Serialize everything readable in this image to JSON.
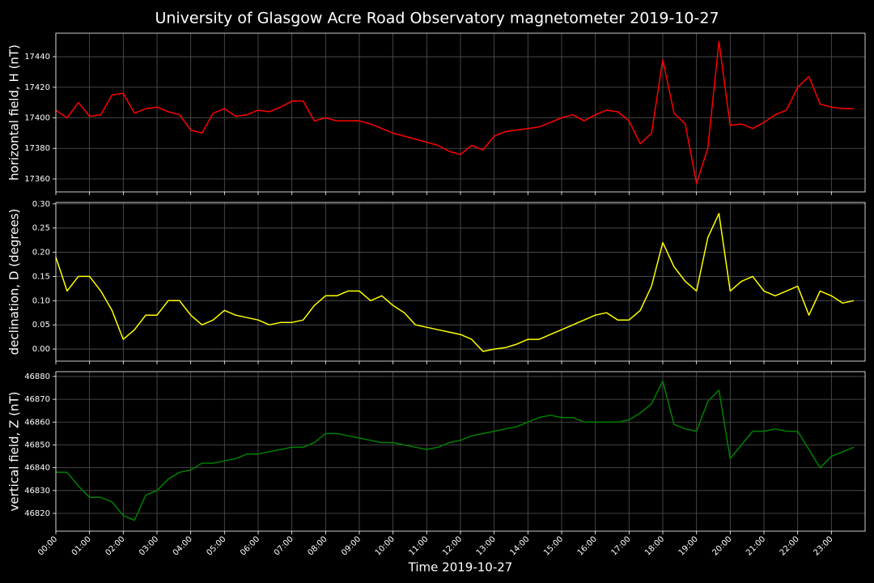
{
  "title": "University of Glasgow Acre Road Observatory magnetometer 2019-10-27",
  "chart_data": [
    {
      "type": "line",
      "ylabel": "horizontal field, H (nT)",
      "color": "#ff0000",
      "grid": true,
      "xlim": [
        "00:00",
        "24:00"
      ],
      "xticks": [
        "00:00",
        "01:00",
        "02:00",
        "03:00",
        "04:00",
        "05:00",
        "06:00",
        "07:00",
        "08:00",
        "09:00",
        "10:00",
        "11:00",
        "12:00",
        "13:00",
        "14:00",
        "15:00",
        "16:00",
        "17:00",
        "18:00",
        "19:00",
        "20:00",
        "21:00",
        "22:00",
        "23:00"
      ],
      "ylim": [
        17351.5,
        17455.4
      ],
      "yticks": [
        17360,
        17380,
        17400,
        17420,
        17440
      ],
      "x": [
        "00:00",
        "00:20",
        "00:40",
        "01:00",
        "01:20",
        "01:40",
        "02:00",
        "02:20",
        "02:40",
        "03:00",
        "03:20",
        "03:40",
        "04:00",
        "04:20",
        "04:40",
        "05:00",
        "05:20",
        "05:40",
        "06:00",
        "06:20",
        "06:40",
        "07:00",
        "07:20",
        "07:40",
        "08:00",
        "08:20",
        "08:40",
        "09:00",
        "09:20",
        "09:40",
        "10:00",
        "10:20",
        "10:40",
        "11:00",
        "11:20",
        "11:40",
        "12:00",
        "12:20",
        "12:40",
        "13:00",
        "13:20",
        "13:40",
        "14:00",
        "14:20",
        "14:40",
        "15:00",
        "15:20",
        "15:40",
        "16:00",
        "16:20",
        "16:40",
        "17:00",
        "17:20",
        "17:40",
        "18:00",
        "18:20",
        "18:40",
        "19:00",
        "19:20",
        "19:40",
        "20:00",
        "20:20",
        "20:40",
        "21:00",
        "21:20",
        "21:40",
        "22:00",
        "22:20",
        "22:40",
        "23:00",
        "23:20",
        "23:40"
      ],
      "values": [
        17405,
        17400,
        17410,
        17401,
        17402,
        17415,
        17416,
        17403,
        17406,
        17407,
        17404,
        17402,
        17392,
        17390,
        17403,
        17406,
        17401,
        17402,
        17405,
        17404,
        17407,
        17411,
        17411,
        17398,
        17400,
        17398,
        17398,
        17398,
        17396,
        17393,
        17390,
        17388,
        17386,
        17384,
        17382,
        17378,
        17376,
        17382,
        17379,
        17388,
        17391,
        17392,
        17393,
        17394,
        17397,
        17400,
        17402,
        17398,
        17402,
        17405,
        17404,
        17398,
        17383,
        17390,
        17438,
        17403,
        17396,
        17357,
        17380,
        17450,
        17395,
        17396,
        17393,
        17397,
        17402,
        17405,
        17420,
        17427,
        17409,
        17407,
        17406,
        17406
      ]
    },
    {
      "type": "line",
      "ylabel": "declination, D (degrees)",
      "color": "#ffff00",
      "grid": true,
      "xlim": [
        "00:00",
        "24:00"
      ],
      "xticks": [
        "00:00",
        "01:00",
        "02:00",
        "03:00",
        "04:00",
        "05:00",
        "06:00",
        "07:00",
        "08:00",
        "09:00",
        "10:00",
        "11:00",
        "12:00",
        "13:00",
        "14:00",
        "15:00",
        "16:00",
        "17:00",
        "18:00",
        "19:00",
        "20:00",
        "21:00",
        "22:00",
        "23:00"
      ],
      "ylim": [
        -0.025,
        0.303
      ],
      "yticks": [
        {
          "value": 0,
          "label": "0.00"
        },
        0.05,
        {
          "value": 0.1,
          "label": "0.10"
        },
        0.15,
        {
          "value": 0.2,
          "label": "0.20"
        },
        0.25,
        {
          "value": 0.3,
          "label": "0.30"
        }
      ],
      "x": [
        "00:00",
        "00:20",
        "00:40",
        "01:00",
        "01:20",
        "01:40",
        "02:00",
        "02:20",
        "02:40",
        "03:00",
        "03:20",
        "03:40",
        "04:00",
        "04:20",
        "04:40",
        "05:00",
        "05:20",
        "05:40",
        "06:00",
        "06:20",
        "06:40",
        "07:00",
        "07:20",
        "07:40",
        "08:00",
        "08:20",
        "08:40",
        "09:00",
        "09:20",
        "09:40",
        "10:00",
        "10:20",
        "10:40",
        "11:00",
        "11:20",
        "11:40",
        "12:00",
        "12:20",
        "12:40",
        "13:00",
        "13:20",
        "13:40",
        "14:00",
        "14:20",
        "14:40",
        "15:00",
        "15:20",
        "15:40",
        "16:00",
        "16:20",
        "16:40",
        "17:00",
        "17:20",
        "17:40",
        "18:00",
        "18:20",
        "18:40",
        "19:00",
        "19:20",
        "19:40",
        "20:00",
        "20:20",
        "20:40",
        "21:00",
        "21:20",
        "21:40",
        "22:00",
        "22:20",
        "22:40",
        "23:00",
        "23:20",
        "23:40"
      ],
      "values": [
        0.19,
        0.12,
        0.15,
        0.15,
        0.12,
        0.08,
        0.02,
        0.04,
        0.07,
        0.07,
        0.1,
        0.1,
        0.07,
        0.05,
        0.06,
        0.08,
        0.07,
        0.065,
        0.06,
        0.05,
        0.055,
        0.055,
        0.06,
        0.09,
        0.11,
        0.11,
        0.12,
        0.12,
        0.1,
        0.11,
        0.09,
        0.075,
        0.05,
        0.045,
        0.04,
        0.035,
        0.03,
        0.02,
        -0.005,
        0,
        0.003,
        0.01,
        0.02,
        0.02,
        0.03,
        0.04,
        0.05,
        0.06,
        0.07,
        0.075,
        0.06,
        0.06,
        0.08,
        0.13,
        0.22,
        0.17,
        0.14,
        0.12,
        0.23,
        0.28,
        0.12,
        0.14,
        0.15,
        0.12,
        0.11,
        0.12,
        0.13,
        0.07,
        0.12,
        0.11,
        0.095,
        0.1
      ]
    },
    {
      "type": "line",
      "ylabel": "vertical field, Z (nT)",
      "xlabel": "Time 2019-10-27",
      "color": "#008000",
      "grid": true,
      "xlim": [
        "00:00",
        "24:00"
      ],
      "xticks": [
        "00:00",
        "01:00",
        "02:00",
        "03:00",
        "04:00",
        "05:00",
        "06:00",
        "07:00",
        "08:00",
        "09:00",
        "10:00",
        "11:00",
        "12:00",
        "13:00",
        "14:00",
        "15:00",
        "16:00",
        "17:00",
        "18:00",
        "19:00",
        "20:00",
        "21:00",
        "22:00",
        "23:00"
      ],
      "ylim": [
        46812.2,
        46882.1
      ],
      "yticks": [
        46820,
        46830,
        46840,
        46850,
        46860,
        46870,
        46880
      ],
      "x": [
        "00:00",
        "00:20",
        "00:40",
        "01:00",
        "01:20",
        "01:40",
        "02:00",
        "02:20",
        "02:40",
        "03:00",
        "03:20",
        "03:40",
        "04:00",
        "04:20",
        "04:40",
        "05:00",
        "05:20",
        "05:40",
        "06:00",
        "06:20",
        "06:40",
        "07:00",
        "07:20",
        "07:40",
        "08:00",
        "08:20",
        "08:40",
        "09:00",
        "09:20",
        "09:40",
        "10:00",
        "10:20",
        "10:40",
        "11:00",
        "11:20",
        "11:40",
        "12:00",
        "12:20",
        "12:40",
        "13:00",
        "13:20",
        "13:40",
        "14:00",
        "14:20",
        "14:40",
        "15:00",
        "15:20",
        "15:40",
        "16:00",
        "16:20",
        "16:40",
        "17:00",
        "17:20",
        "17:40",
        "18:00",
        "18:20",
        "18:40",
        "19:00",
        "19:20",
        "19:40",
        "20:00",
        "20:20",
        "20:40",
        "21:00",
        "21:20",
        "21:40",
        "22:00",
        "22:20",
        "22:40",
        "23:00",
        "23:20",
        "23:40"
      ],
      "values": [
        46838,
        46838,
        46832,
        46827,
        46827,
        46825,
        46819,
        46817,
        46828,
        46830,
        46835,
        46838,
        46839,
        46842,
        46842,
        46843,
        46844,
        46846,
        46846,
        46847,
        46848,
        46849,
        46849,
        46851,
        46855,
        46855,
        46854,
        46853,
        46852,
        46851,
        46851,
        46850,
        46849,
        46848,
        46849,
        46851,
        46852,
        46854,
        46855,
        46856,
        46857,
        46858,
        46860,
        46862,
        46863,
        46862,
        46862,
        46860,
        46860,
        46860,
        46860,
        46861,
        46864,
        46868,
        46878,
        46859,
        46857,
        46856,
        46869,
        46874,
        46844,
        46850,
        46856,
        46856,
        46857,
        46856,
        46856,
        46848,
        46840,
        46845,
        46847,
        46849
      ]
    }
  ]
}
